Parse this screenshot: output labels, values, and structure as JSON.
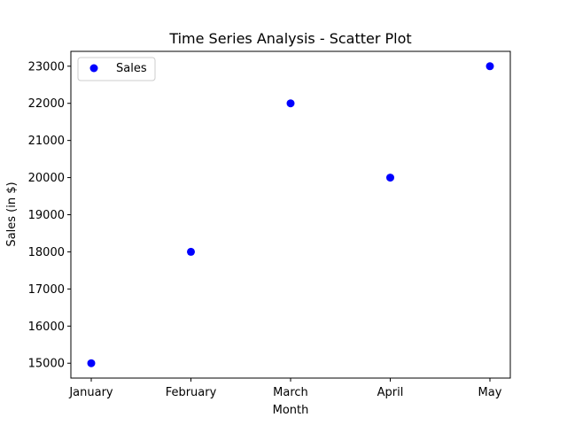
{
  "chart_data": {
    "type": "scatter",
    "title": "Time Series Analysis - Scatter Plot",
    "xlabel": "Month",
    "ylabel": "Sales (in $)",
    "categories": [
      "January",
      "February",
      "March",
      "April",
      "May"
    ],
    "series": [
      {
        "name": "Sales",
        "color": "#0000ff",
        "values": [
          15000,
          18000,
          22000,
          20000,
          23000
        ]
      }
    ],
    "ylim": [
      14600,
      23400
    ],
    "yticks": [
      15000,
      16000,
      17000,
      18000,
      19000,
      20000,
      21000,
      22000,
      23000
    ],
    "grid": false,
    "legend": {
      "position": "top-left"
    }
  }
}
